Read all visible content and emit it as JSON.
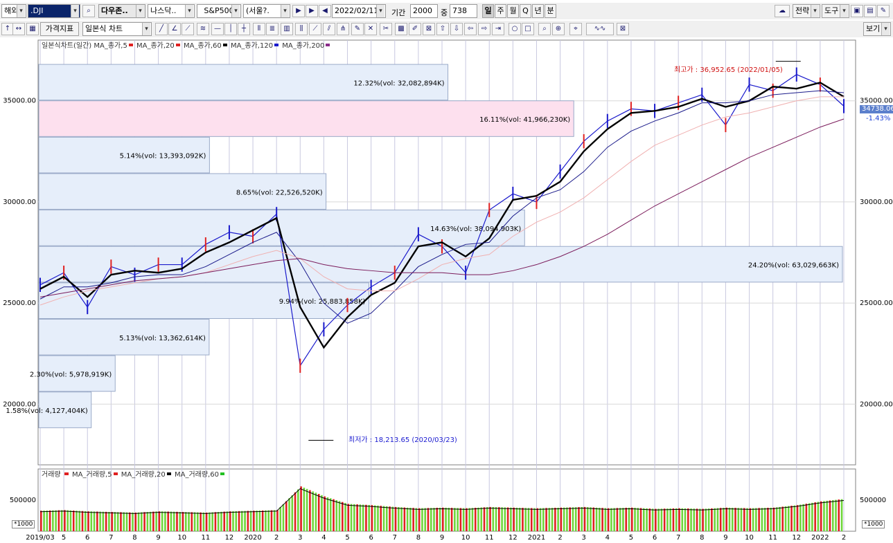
{
  "toolbar1": {
    "market_label": "해외",
    "symbol": ".DJI",
    "symbol_name": "다우존..",
    "compare1": "나스닥..",
    "compare2": "S&P500",
    "timezone": "(서울?.",
    "date": "2022/02/11",
    "period_label": "기간",
    "period_value": "2000",
    "count_label": "중",
    "count_value": "738",
    "tf_day": "일",
    "tf_week": "주",
    "tf_month": "월",
    "tf_quarter": "Q",
    "tf_year": "년",
    "tf_minute": "분",
    "strategy": "전략",
    "tools": "도구"
  },
  "toolbar2": {
    "price_indicator": "가격지표",
    "chart_type": "일본식 차트",
    "view": "보기"
  },
  "legend_main": {
    "title": "일본식차트(일간)",
    "ma": [
      "MA_종가,5",
      "MA_종가,20",
      "MA_종가,60",
      "MA_종가,120",
      "MA_종가,200"
    ],
    "ma_colors": [
      "#e02020",
      "#e02020",
      "#000000",
      "#1a1acc",
      "#f0b0b0"
    ]
  },
  "legend_volume": {
    "title": "거래량",
    "ma": [
      "MA_거래량,5",
      "MA_거래량,20",
      "MA_거래량,60"
    ],
    "ma_colors": [
      "#e02020",
      "#000000",
      "#e02020"
    ]
  },
  "annotations": {
    "high": "최고가 : 36,952.65 (2022/01/05)",
    "low": "최저가 : 18,213.65 (2020/03/23)",
    "last_price": "34738.06",
    "change": "-1.43%"
  },
  "y_axis": [
    "35000.00",
    "30000.00",
    "25000.00",
    "20000.00"
  ],
  "volume_axis": {
    "tick": "500000",
    "unit": "*1000"
  },
  "x_axis": [
    "2019/03",
    "5",
    "6",
    "7",
    "8",
    "9",
    "10",
    "11",
    "12",
    "2020",
    "2",
    "3",
    "4",
    "5",
    "6",
    "7",
    "8",
    "9",
    "10",
    "11",
    "12",
    "2021",
    "2",
    "3",
    "4",
    "5",
    "6",
    "7",
    "8",
    "9",
    "10",
    "11",
    "12",
    "2022",
    "2"
  ],
  "volume_profile": [
    {
      "price_low": 35000,
      "price_high": 36800,
      "text": "12.32%(vol: 32,082,894K)"
    },
    {
      "price_low": 33200,
      "price_high": 35000,
      "text": "16.11%(vol: 41,966,230K)",
      "highlight": true
    },
    {
      "price_low": 31400,
      "price_high": 33200,
      "text": "5.14%(vol: 13,393,092K)"
    },
    {
      "price_low": 29600,
      "price_high": 31400,
      "text": "8.65%(vol: 22,526,520K)"
    },
    {
      "price_low": 27800,
      "price_high": 29600,
      "text": "14.63%(vol: 38,094,903K)"
    },
    {
      "price_low": 26000,
      "price_high": 27800,
      "text": "24.20%(vol: 63,029,663K)"
    },
    {
      "price_low": 24200,
      "price_high": 26000,
      "text": "9.94%(vol: 25,883,858K)"
    },
    {
      "price_low": 22400,
      "price_high": 24200,
      "text": "5.13%(vol: 13,362,614K)"
    },
    {
      "price_low": 20600,
      "price_high": 22400,
      "text": "2.30%(vol: 5,978,919K)"
    },
    {
      "price_low": 18800,
      "price_high": 20600,
      "text": "1.58%(vol: 4,127,404K)"
    }
  ],
  "chart_data": {
    "type": "line",
    "title": "일본식차트(일간)",
    "x": [
      "2019/03",
      "2019/05",
      "2019/06",
      "2019/07",
      "2019/08",
      "2019/09",
      "2019/10",
      "2019/11",
      "2019/12",
      "2020/01",
      "2020/02",
      "2020/03",
      "2020/04",
      "2020/05",
      "2020/06",
      "2020/07",
      "2020/08",
      "2020/09",
      "2020/10",
      "2020/11",
      "2020/12",
      "2021/01",
      "2021/02",
      "2021/03",
      "2021/04",
      "2021/05",
      "2021/06",
      "2021/07",
      "2021/08",
      "2021/09",
      "2021/10",
      "2021/11",
      "2021/12",
      "2022/01",
      "2022/02"
    ],
    "series": [
      {
        "name": "종가",
        "values": [
          25900,
          26500,
          24800,
          26800,
          26400,
          26900,
          26900,
          27900,
          28500,
          28300,
          29400,
          21900,
          23700,
          24900,
          25800,
          26500,
          28400,
          27800,
          26500,
          29600,
          30400,
          30000,
          31500,
          33000,
          34000,
          34600,
          34500,
          34900,
          35300,
          33800,
          35800,
          35500,
          36300,
          35800,
          34738
        ]
      },
      {
        "name": "MA_종가,20",
        "values": [
          25700,
          26300,
          25300,
          26400,
          26600,
          26500,
          26700,
          27500,
          28000,
          28600,
          29200,
          24800,
          22800,
          24300,
          25400,
          26000,
          27800,
          28000,
          27300,
          28200,
          30100,
          30300,
          31000,
          32500,
          33600,
          34400,
          34500,
          34700,
          35100,
          34700,
          35000,
          35700,
          35600,
          35900,
          35200
        ]
      },
      {
        "name": "MA_종가,60",
        "values": [
          25200,
          25800,
          25800,
          26000,
          26300,
          26400,
          26400,
          26800,
          27400,
          28000,
          28500,
          27000,
          25000,
          24000,
          24500,
          25600,
          26800,
          27400,
          27900,
          28000,
          29300,
          30200,
          30600,
          31500,
          32700,
          33500,
          34000,
          34400,
          34900,
          34900,
          35000,
          35300,
          35400,
          35500,
          35400
        ]
      },
      {
        "name": "MA_종가,120",
        "values": [
          24900,
          25300,
          25600,
          25800,
          26000,
          26200,
          26300,
          26500,
          26900,
          27300,
          27600,
          27200,
          26300,
          25700,
          25600,
          25600,
          26200,
          26900,
          27200,
          27400,
          28300,
          29000,
          29500,
          30200,
          31100,
          32000,
          32800,
          33300,
          33800,
          34200,
          34400,
          34700,
          35000,
          35200,
          35200
        ]
      },
      {
        "name": "MA_종가,200",
        "values": [
          25300,
          25500,
          25700,
          25900,
          26100,
          26200,
          26300,
          26500,
          26700,
          26900,
          27100,
          27200,
          26900,
          26700,
          26600,
          26500,
          26500,
          26500,
          26400,
          26400,
          26600,
          26900,
          27300,
          27800,
          28400,
          29100,
          29800,
          30400,
          31000,
          31600,
          32200,
          32700,
          33200,
          33700,
          34100
        ]
      }
    ],
    "ylim": [
      17000,
      38000
    ],
    "annotations": [
      {
        "label": "최고가",
        "x": "2022/01/05",
        "y": 36952.65
      },
      {
        "label": "최저가",
        "x": "2020/03/23",
        "y": 18213.65
      }
    ],
    "volume": {
      "ylim": [
        0,
        1000000
      ],
      "values": [
        330000,
        340000,
        320000,
        310000,
        300000,
        320000,
        310000,
        300000,
        320000,
        330000,
        340000,
        720000,
        560000,
        440000,
        420000,
        390000,
        370000,
        380000,
        370000,
        390000,
        380000,
        370000,
        380000,
        390000,
        370000,
        380000,
        360000,
        370000,
        360000,
        380000,
        370000,
        380000,
        420000,
        480000,
        520000
      ]
    },
    "grid": true
  }
}
